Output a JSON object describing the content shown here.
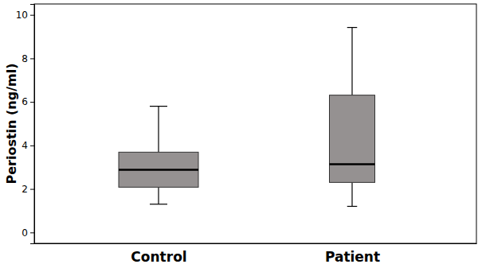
{
  "chart_data": {
    "type": "box",
    "y_label": "Periostin (ng/ml)",
    "categories": [
      "Control",
      "Patient"
    ],
    "boxes": [
      {
        "whisker_low": 1.3,
        "q1": 2.08,
        "median": 2.88,
        "q3": 3.69,
        "whisker_high": 5.8
      },
      {
        "whisker_low": 1.2,
        "q1": 2.3,
        "median": 3.14,
        "q3": 6.31,
        "whisker_high": 9.42
      }
    ],
    "color": "#959191",
    "ylim": [
      -0.5,
      10.5
    ],
    "yticks": [
      0,
      2,
      4,
      6,
      8,
      10
    ],
    "grid": false
  }
}
